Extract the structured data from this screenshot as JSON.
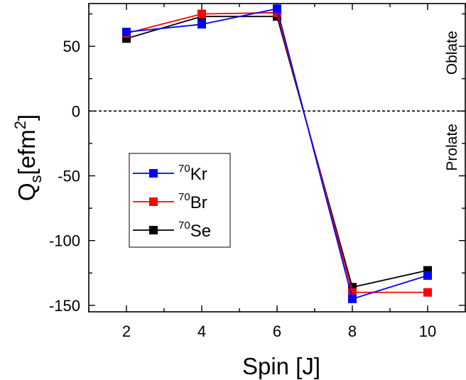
{
  "chart_data": {
    "type": "line",
    "xlabel": "Spin [J]",
    "ylabel": {
      "main": "Q",
      "sub": "s",
      "unit": "[efm",
      "sup": "2",
      "close": "]"
    },
    "x": [
      2,
      4,
      6,
      8,
      10
    ],
    "xlim": [
      1,
      11
    ],
    "ylim": [
      -155,
      83
    ],
    "xticks": [
      2,
      4,
      6,
      8,
      10
    ],
    "yticks": [
      50,
      0,
      -50,
      -100,
      -150
    ],
    "grid": false,
    "reference_line": {
      "y": 0,
      "style": "dashed"
    },
    "annotations": [
      {
        "text": "Oblate",
        "near_y": 45
      },
      {
        "text": "Prolate",
        "near_y": -28
      }
    ],
    "legend": {
      "placement": "center-left"
    },
    "series": [
      {
        "name": {
          "mass": "70",
          "element": "Se"
        },
        "color": "#000000",
        "values": [
          56,
          73,
          73,
          -136,
          -123
        ]
      },
      {
        "name": {
          "mass": "70",
          "element": "Br"
        },
        "color": "#ff0000",
        "values": [
          60,
          75,
          76,
          -140,
          -140
        ]
      },
      {
        "name": {
          "mass": "70",
          "element": "Kr"
        },
        "color": "#0000ff",
        "values": [
          61,
          67,
          79,
          -145,
          -127
        ]
      }
    ],
    "legend_order": [
      2,
      1,
      0
    ]
  }
}
